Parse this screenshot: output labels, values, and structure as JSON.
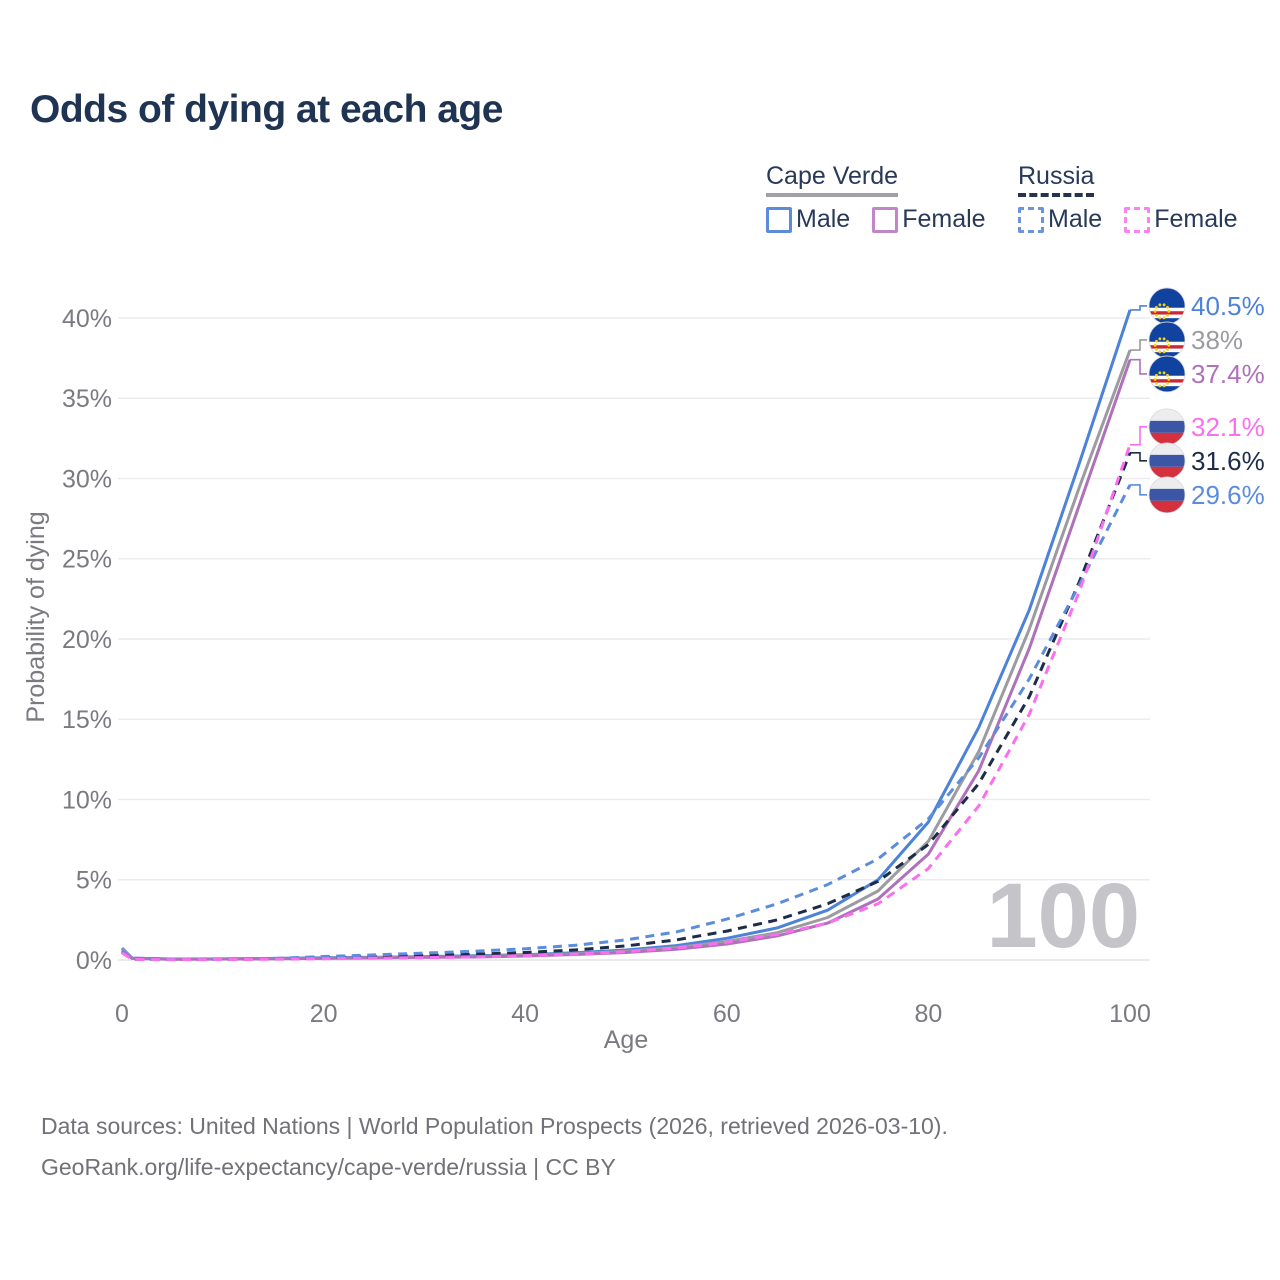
{
  "title": "Odds of dying at each age",
  "legend": {
    "groups": [
      {
        "label": "Cape Verde",
        "style": "solid",
        "items": [
          {
            "label": "Male",
            "color": "#5b8cd9"
          },
          {
            "label": "Female",
            "color": "#c285c8"
          }
        ]
      },
      {
        "label": "Russia",
        "style": "dashed",
        "items": [
          {
            "label": "Male",
            "color": "#6b94dd"
          },
          {
            "label": "Female",
            "color": "#fb84f0"
          }
        ]
      }
    ]
  },
  "watermark": "100",
  "footer": {
    "line1": "Data sources: United Nations | World Population Prospects (2026, retrieved 2026-03-10).",
    "line2": "GeoRank.org/life-expectancy/cape-verde/russia | CC BY"
  },
  "chart_data": {
    "type": "line",
    "title": "Odds of dying at each age",
    "xlabel": "Age",
    "ylabel": "Probability of dying",
    "xlim": [
      0,
      100
    ],
    "ylim": [
      0,
      42
    ],
    "grid": "horizontal",
    "legend_position": "top-right",
    "xticks": {
      "values": [
        0,
        20,
        40,
        60,
        80,
        100
      ],
      "labels": [
        "0",
        "20",
        "40",
        "60",
        "80",
        "100"
      ]
    },
    "yticks": {
      "values": [
        0,
        5,
        10,
        15,
        20,
        25,
        30,
        35,
        40
      ],
      "labels": [
        "0%",
        "5%",
        "10%",
        "15%",
        "20%",
        "25%",
        "30%",
        "35%",
        "40%"
      ]
    },
    "x": [
      0,
      1,
      5,
      10,
      15,
      20,
      25,
      30,
      35,
      40,
      45,
      50,
      55,
      60,
      65,
      70,
      75,
      80,
      85,
      90,
      95,
      100
    ],
    "series": [
      {
        "name": "Cape Verde Male",
        "country": "Cape Verde",
        "sex": "Male",
        "color": "#4d82d9",
        "dash": "solid",
        "flag": "cape-verde",
        "end_label": "40.5%",
        "end_value": 40.5,
        "values": [
          0.75,
          0.12,
          0.06,
          0.07,
          0.1,
          0.14,
          0.17,
          0.21,
          0.26,
          0.33,
          0.45,
          0.62,
          0.9,
          1.35,
          2.0,
          3.1,
          5.0,
          8.6,
          14.5,
          21.8,
          31.0,
          40.5
        ]
      },
      {
        "name": "Cape Verde Both sexes",
        "country": "Cape Verde",
        "sex": "Both",
        "color": "#9b9ba0",
        "dash": "solid",
        "flag": "cape-verde",
        "end_label": "38%",
        "end_value": 38.0,
        "values": [
          0.68,
          0.11,
          0.05,
          0.06,
          0.09,
          0.12,
          0.15,
          0.18,
          0.22,
          0.29,
          0.39,
          0.54,
          0.78,
          1.15,
          1.7,
          2.65,
          4.3,
          7.4,
          13.0,
          20.6,
          29.5,
          38.0
        ]
      },
      {
        "name": "Cape Verde Female",
        "country": "Cape Verde",
        "sex": "Female",
        "color": "#ae71ba",
        "dash": "solid",
        "flag": "cape-verde",
        "end_label": "37.4%",
        "end_value": 37.4,
        "values": [
          0.6,
          0.1,
          0.05,
          0.06,
          0.08,
          0.1,
          0.13,
          0.16,
          0.19,
          0.25,
          0.34,
          0.47,
          0.67,
          1.0,
          1.5,
          2.3,
          3.8,
          6.6,
          11.8,
          19.4,
          28.4,
          37.4
        ]
      },
      {
        "name": "Russia Both sexes",
        "country": "Russia",
        "sex": "Both",
        "color": "#1d2c47",
        "dash": "dashed",
        "flag": "russia",
        "end_label": "31.6%",
        "end_value": 31.6,
        "values": [
          0.5,
          0.05,
          0.03,
          0.04,
          0.07,
          0.15,
          0.21,
          0.28,
          0.36,
          0.47,
          0.63,
          0.88,
          1.25,
          1.8,
          2.5,
          3.5,
          4.9,
          7.2,
          11.0,
          16.4,
          23.6,
          31.6
        ]
      },
      {
        "name": "Russia Male",
        "country": "Russia",
        "sex": "Male",
        "color": "#5b8cdd",
        "dash": "dashed",
        "flag": "russia",
        "end_label": "29.6%",
        "end_value": 29.6,
        "values": [
          0.55,
          0.05,
          0.03,
          0.04,
          0.09,
          0.22,
          0.32,
          0.43,
          0.55,
          0.7,
          0.92,
          1.25,
          1.75,
          2.55,
          3.5,
          4.7,
          6.3,
          8.8,
          12.6,
          17.5,
          23.4,
          29.6
        ]
      },
      {
        "name": "Russia Female",
        "country": "Russia",
        "sex": "Female",
        "color": "#fa6ef0",
        "dash": "dashed",
        "flag": "russia",
        "end_label": "32.1%",
        "end_value": 32.1,
        "values": [
          0.45,
          0.04,
          0.02,
          0.03,
          0.05,
          0.08,
          0.11,
          0.15,
          0.2,
          0.27,
          0.37,
          0.52,
          0.75,
          1.1,
          1.6,
          2.3,
          3.5,
          5.7,
          9.6,
          15.3,
          23.0,
          32.1
        ]
      }
    ]
  }
}
